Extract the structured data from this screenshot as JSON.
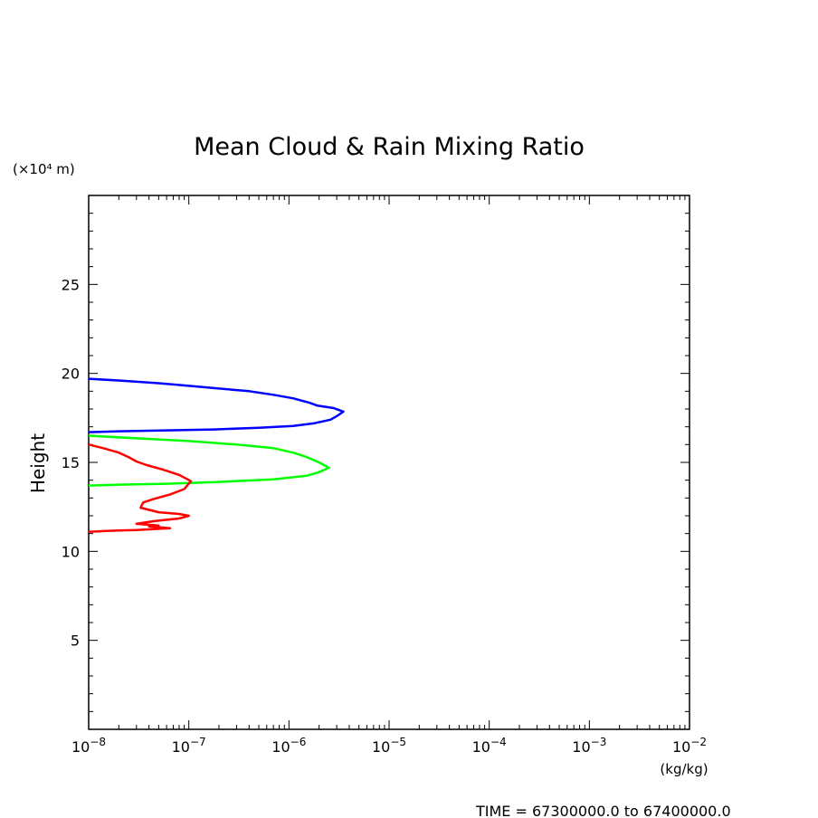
{
  "chart_data": {
    "type": "line",
    "title": "Mean Cloud & Rain Mixing Ratio",
    "ylabel": "Height",
    "yunit": "(×10⁴ m)",
    "xunit": "(kg/kg)",
    "xscale": "log",
    "xlim": [
      1e-08,
      0.01
    ],
    "ylim": [
      0,
      30
    ],
    "xticks": [
      {
        "value": 1e-08,
        "base": "10",
        "exp": "−8"
      },
      {
        "value": 1e-07,
        "base": "10",
        "exp": "−7"
      },
      {
        "value": 1e-06,
        "base": "10",
        "exp": "−6"
      },
      {
        "value": 1e-05,
        "base": "10",
        "exp": "−5"
      },
      {
        "value": 0.0001,
        "base": "10",
        "exp": "−4"
      },
      {
        "value": 0.001,
        "base": "10",
        "exp": "−3"
      },
      {
        "value": 0.01,
        "base": "10",
        "exp": "−2"
      }
    ],
    "yticks": [
      {
        "value": 5,
        "label": "5"
      },
      {
        "value": 10,
        "label": "10"
      },
      {
        "value": 15,
        "label": "15"
      },
      {
        "value": 20,
        "label": "20"
      },
      {
        "value": 25,
        "label": "25"
      }
    ],
    "grid": false,
    "series": [
      {
        "color": "#0000ff",
        "points": [
          [
            1e-08,
            19.7
          ],
          [
            2e-08,
            19.6
          ],
          [
            5e-08,
            19.45
          ],
          [
            1e-07,
            19.3
          ],
          [
            2e-07,
            19.15
          ],
          [
            4e-07,
            19.0
          ],
          [
            7e-07,
            18.8
          ],
          [
            1.1e-06,
            18.6
          ],
          [
            1.6e-06,
            18.35
          ],
          [
            1.9e-06,
            18.2
          ],
          [
            2.8e-06,
            18.05
          ],
          [
            3.5e-06,
            17.85
          ],
          [
            3.1e-06,
            17.65
          ],
          [
            2.6e-06,
            17.4
          ],
          [
            1.8e-06,
            17.2
          ],
          [
            1.1e-06,
            17.05
          ],
          [
            5e-07,
            16.95
          ],
          [
            1.8e-07,
            16.85
          ],
          [
            6e-08,
            16.8
          ],
          [
            2e-08,
            16.75
          ],
          [
            1e-08,
            16.7
          ]
        ]
      },
      {
        "color": "#00ff00",
        "points": [
          [
            1e-08,
            16.5
          ],
          [
            3e-08,
            16.35
          ],
          [
            1e-07,
            16.2
          ],
          [
            3e-07,
            16.0
          ],
          [
            7e-07,
            15.8
          ],
          [
            1.1e-06,
            15.55
          ],
          [
            1.5e-06,
            15.3
          ],
          [
            2e-06,
            15.0
          ],
          [
            2.5e-06,
            14.7
          ],
          [
            2e-06,
            14.45
          ],
          [
            1.5e-06,
            14.25
          ],
          [
            7e-07,
            14.05
          ],
          [
            2e-07,
            13.9
          ],
          [
            6e-08,
            13.8
          ],
          [
            2e-08,
            13.75
          ],
          [
            1e-08,
            13.7
          ]
        ]
      },
      {
        "color": "#ff0000",
        "points": [
          [
            1e-08,
            16.0
          ],
          [
            1.4e-08,
            15.8
          ],
          [
            2e-08,
            15.55
          ],
          [
            2.5e-08,
            15.3
          ],
          [
            3e-08,
            15.05
          ],
          [
            3.8e-08,
            14.85
          ],
          [
            5.5e-08,
            14.6
          ],
          [
            8e-08,
            14.3
          ],
          [
            1.05e-07,
            13.95
          ],
          [
            9e-08,
            13.5
          ],
          [
            6.5e-08,
            13.2
          ],
          [
            4.5e-08,
            12.95
          ],
          [
            3.5e-08,
            12.75
          ],
          [
            3.3e-08,
            12.45
          ],
          [
            5e-08,
            12.2
          ],
          [
            8e-08,
            12.1
          ],
          [
            1e-07,
            12.0
          ],
          [
            8e-08,
            11.85
          ],
          [
            4.5e-08,
            11.7
          ],
          [
            3e-08,
            11.55
          ],
          [
            5e-08,
            11.45
          ],
          [
            4e-08,
            11.4
          ],
          [
            6.5e-08,
            11.3
          ],
          [
            3e-08,
            11.2
          ],
          [
            1.5e-08,
            11.15
          ],
          [
            1e-08,
            11.1
          ]
        ]
      }
    ],
    "time_note": "TIME = 67300000.0 to 67400000.0"
  }
}
